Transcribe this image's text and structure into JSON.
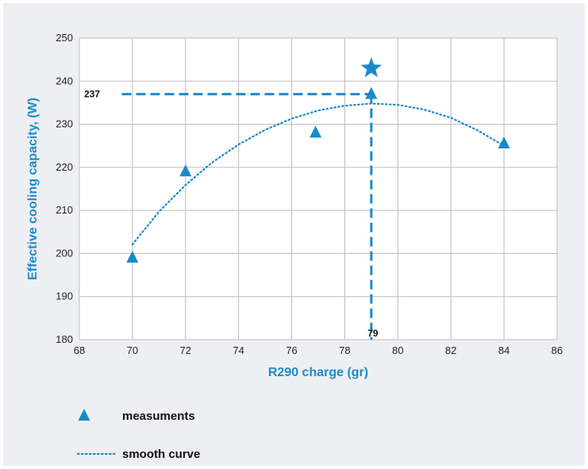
{
  "chart_data": {
    "type": "scatter",
    "xlabel": "R290 charge (gr)",
    "ylabel": "Effective cooling capacity, (W)",
    "xlim": [
      68,
      86
    ],
    "ylim": [
      180,
      250
    ],
    "x_ticks": [
      68,
      70,
      72,
      74,
      76,
      78,
      80,
      82,
      84,
      86
    ],
    "y_ticks": [
      180,
      190,
      200,
      210,
      220,
      230,
      240,
      250
    ],
    "grid": true,
    "series": [
      {
        "name": "measuments",
        "marker": "triangle",
        "x": [
          70,
          72,
          76.9,
          79,
          84
        ],
        "y": [
          199,
          219,
          228,
          237,
          225.5
        ]
      },
      {
        "name": "smooth curve",
        "style": "dotted",
        "x": [
          70,
          71,
          72,
          73,
          74,
          75,
          76,
          77,
          78,
          79,
          80,
          81,
          82,
          83,
          84
        ],
        "y": [
          202.1,
          209.7,
          215.9,
          221.1,
          225.3,
          228.7,
          231.3,
          233.2,
          234.3,
          234.8,
          234.5,
          233.4,
          231.5,
          228.6,
          225.0
        ]
      }
    ],
    "optimum": {
      "marker": "star",
      "x": 79,
      "y": 243
    },
    "annotations": [
      {
        "axis": "y",
        "value": 237,
        "label": "237"
      },
      {
        "axis": "x",
        "value": 79,
        "label": "79"
      }
    ],
    "legend_position": "bottom-left"
  },
  "colors": {
    "accent": "#1a8ac9",
    "background": "#eeeff2",
    "plot_background": "#ffffff",
    "grid": "#b9bcc0"
  }
}
